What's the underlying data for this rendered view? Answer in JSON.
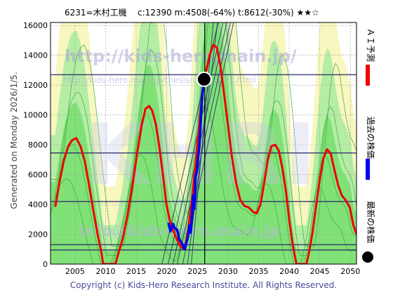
{
  "header": {
    "code_name": "6231=木村工機",
    "stats": "c:12390  m:4508(-64%)  t:8612(-30%)  ★★☆"
  },
  "side_text": "Generated on Monday 2026/1/5.",
  "legend": {
    "ai": "ＡＩ予測",
    "past": "過去の株価",
    "latest": "最新の株価",
    "ai_color": "#ee0000",
    "past_color": "#0000ee",
    "latest_color": "#000000"
  },
  "watermarks": {
    "url_large": "http://kids-hero.main.jp/",
    "url_small": "http://kids-hero.main.jp/thesis/code6231.html",
    "logo": "KHRI",
    "email": "info@kids-hero.main.jp"
  },
  "footer": "Copyright (c) Kids-Hero Research Institute. All Rights Reserved.",
  "chart_data": {
    "type": "line",
    "xlim": [
      2001,
      2051
    ],
    "ylim": [
      0,
      16200
    ],
    "x_ticks": [
      "2005",
      "2010",
      "2015",
      "2020",
      "2025",
      "2030",
      "2035",
      "2040",
      "2045",
      "2050"
    ],
    "y_ticks": [
      "0",
      "2000",
      "4000",
      "6000",
      "8000",
      "10000",
      "12000",
      "14000",
      "16000"
    ],
    "hlines": [
      12700,
      7450,
      4200,
      1300,
      950
    ],
    "vline": 2026.2,
    "latest_point": {
      "x": 2026.1,
      "y": 12390
    },
    "series": [
      {
        "name": "ＡＩ予測",
        "color": "#ee0000",
        "points": [
          [
            2001.8,
            3900
          ],
          [
            2002.5,
            5600
          ],
          [
            2003.2,
            7000
          ],
          [
            2003.9,
            7900
          ],
          [
            2004.5,
            8300
          ],
          [
            2005.2,
            8450
          ],
          [
            2005.9,
            7900
          ],
          [
            2006.6,
            6900
          ],
          [
            2007.3,
            5300
          ],
          [
            2008.0,
            3600
          ],
          [
            2008.7,
            2000
          ],
          [
            2009.3,
            800
          ],
          [
            2009.6,
            0
          ],
          [
            2011.6,
            0
          ],
          [
            2012.0,
            600
          ],
          [
            2012.8,
            1700
          ],
          [
            2013.6,
            3300
          ],
          [
            2014.4,
            5300
          ],
          [
            2015.1,
            7300
          ],
          [
            2015.9,
            9300
          ],
          [
            2016.5,
            10400
          ],
          [
            2017.1,
            10600
          ],
          [
            2017.6,
            10300
          ],
          [
            2018.2,
            9400
          ],
          [
            2018.8,
            7800
          ],
          [
            2019.4,
            5900
          ],
          [
            2019.9,
            4100
          ],
          [
            2020.5,
            2900
          ],
          [
            2021.1,
            2200
          ],
          [
            2021.7,
            1600
          ],
          [
            2022.2,
            1200
          ],
          [
            2022.6,
            1050
          ],
          [
            2023.0,
            1250
          ],
          [
            2023.5,
            2300
          ],
          [
            2024.1,
            4300
          ],
          [
            2024.7,
            6800
          ],
          [
            2025.3,
            9300
          ],
          [
            2025.8,
            11500
          ],
          [
            2026.4,
            12900
          ],
          [
            2027.0,
            14000
          ],
          [
            2027.6,
            14700
          ],
          [
            2028.2,
            14500
          ],
          [
            2028.8,
            13200
          ],
          [
            2029.4,
            11300
          ],
          [
            2030.0,
            9300
          ],
          [
            2030.6,
            7300
          ],
          [
            2031.3,
            5500
          ],
          [
            2032.0,
            4300
          ],
          [
            2032.7,
            3900
          ],
          [
            2033.4,
            3800
          ],
          [
            2034.1,
            3500
          ],
          [
            2034.7,
            3400
          ],
          [
            2035.3,
            4000
          ],
          [
            2035.9,
            5400
          ],
          [
            2036.5,
            7000
          ],
          [
            2037.1,
            7900
          ],
          [
            2037.7,
            8000
          ],
          [
            2038.3,
            7600
          ],
          [
            2038.9,
            6400
          ],
          [
            2039.5,
            4800
          ],
          [
            2040.0,
            3000
          ],
          [
            2040.5,
            1500
          ],
          [
            2040.9,
            600
          ],
          [
            2041.2,
            0
          ],
          [
            2042.8,
            0
          ],
          [
            2043.2,
            700
          ],
          [
            2043.8,
            2100
          ],
          [
            2044.4,
            3900
          ],
          [
            2045.0,
            5700
          ],
          [
            2045.6,
            7100
          ],
          [
            2046.2,
            7700
          ],
          [
            2046.8,
            7400
          ],
          [
            2047.4,
            6300
          ],
          [
            2048.0,
            5300
          ],
          [
            2048.6,
            4600
          ],
          [
            2049.2,
            4300
          ],
          [
            2049.9,
            3800
          ],
          [
            2050.5,
            2600
          ],
          [
            2051.0,
            2000
          ]
        ]
      },
      {
        "name": "過去の株価",
        "color": "#0000ee",
        "points": [
          [
            2020.3,
            2700
          ],
          [
            2020.6,
            2200
          ],
          [
            2021.0,
            2700
          ],
          [
            2021.3,
            2400
          ],
          [
            2021.7,
            2300
          ],
          [
            2022.0,
            1700
          ],
          [
            2022.3,
            1500
          ],
          [
            2022.6,
            1300
          ],
          [
            2022.9,
            1000
          ],
          [
            2023.1,
            1300
          ],
          [
            2023.4,
            1700
          ],
          [
            2023.7,
            2600
          ],
          [
            2023.9,
            2100
          ],
          [
            2024.1,
            3100
          ],
          [
            2024.3,
            4600
          ],
          [
            2024.5,
            3700
          ],
          [
            2024.7,
            5900
          ],
          [
            2024.9,
            6200
          ],
          [
            2025.1,
            7100
          ],
          [
            2025.3,
            7800
          ],
          [
            2025.5,
            9100
          ],
          [
            2025.7,
            10800
          ],
          [
            2025.9,
            11700
          ],
          [
            2026.1,
            12390
          ]
        ]
      }
    ]
  }
}
